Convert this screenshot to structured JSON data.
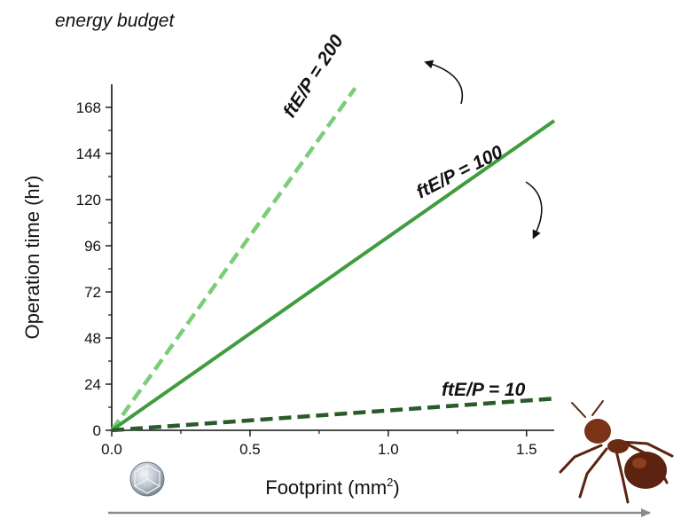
{
  "chart_data": {
    "type": "line",
    "title": "energy budget",
    "xlabel": "Footprint (mm",
    "xlabel_superscript": "2",
    "xlabel_close": ")",
    "ylabel": "Operation time (hr)",
    "xlim": [
      0,
      1.6
    ],
    "ylim": [
      0,
      180
    ],
    "xticks": [
      0.0,
      0.5,
      1.0,
      1.5
    ],
    "xtick_labels": [
      "0.0",
      "0.5",
      "1.0",
      "1.5"
    ],
    "yticks": [
      0,
      24,
      48,
      72,
      96,
      120,
      144,
      168
    ],
    "ytick_labels": [
      "0",
      "24",
      "48",
      "72",
      "96",
      "120",
      "144",
      "168"
    ],
    "grid": false,
    "series": [
      {
        "name": "ftE/P = 200",
        "x": [
          0,
          0.88
        ],
        "y": [
          0,
          178
        ],
        "style": "dashed",
        "color": "#7ccc78"
      },
      {
        "name": "ftE/P = 100",
        "x": [
          0,
          1.6
        ],
        "y": [
          0,
          161
        ],
        "style": "solid",
        "color": "#3f9c3f"
      },
      {
        "name": "ftE/P = 10",
        "x": [
          0,
          1.6
        ],
        "y": [
          0,
          16.5
        ],
        "style": "dashed",
        "color": "#2b5a2b"
      }
    ],
    "annotations": {
      "icons": [
        "curved-arrow-up-icon",
        "curved-arrow-down-icon",
        "microchip-icon",
        "ant-icon",
        "size-scale-arrow-icon"
      ]
    }
  }
}
